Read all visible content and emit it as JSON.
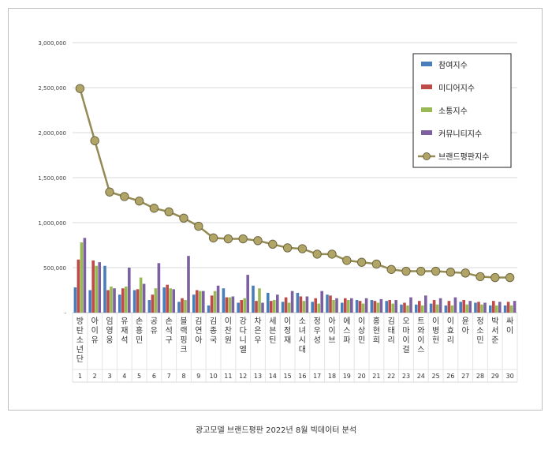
{
  "caption": "광고모델 브랜드평판  2022년 8월 빅데이터 분석",
  "colors": {
    "participation": "#4a7ebb",
    "media": "#be4b48",
    "communication": "#98b954",
    "community": "#7d60a0",
    "brand": "#948a54"
  },
  "chart_data": {
    "type": "bar",
    "categories": [
      "방탄소년단",
      "아이유",
      "임영웅",
      "유재석",
      "손흥민",
      "공유",
      "손석구",
      "블랙핑크",
      "김연아",
      "김종국",
      "이찬원",
      "강다니엘",
      "차은우",
      "세븐틴",
      "이정재",
      "소녀시대",
      "정우성",
      "아이브",
      "에스파",
      "이상민",
      "홍현희",
      "김태리",
      "오마이걸",
      "트와이스",
      "이병헌",
      "이효리",
      "윤아",
      "정소민",
      "박서준",
      "싸이"
    ],
    "ranks": [
      "1",
      "2",
      "3",
      "4",
      "5",
      "6",
      "7",
      "8",
      "9",
      "10",
      "11",
      "12",
      "13",
      "14",
      "15",
      "16",
      "17",
      "18",
      "19",
      "20",
      "21",
      "22",
      "23",
      "24",
      "25",
      "26",
      "27",
      "28",
      "29",
      "30"
    ],
    "ylim": [
      0,
      3000000
    ],
    "yticks": [
      "3,000,000",
      "2,500,000",
      "2,000,000",
      "1,500,000",
      "1,000,000",
      "500,000",
      "-"
    ],
    "ytick_values": [
      3000000,
      2500000,
      2000000,
      1500000,
      1000000,
      500000,
      0
    ],
    "legend_position": "top-right",
    "series": [
      {
        "name": "참여지수",
        "kind": "bar",
        "color_key": "participation",
        "values": [
          280000,
          250000,
          520000,
          200000,
          250000,
          140000,
          280000,
          120000,
          200000,
          80000,
          270000,
          110000,
          300000,
          220000,
          120000,
          220000,
          120000,
          200000,
          110000,
          140000,
          140000,
          130000,
          90000,
          90000,
          100000,
          80000,
          120000,
          110000,
          80000,
          80000
        ]
      },
      {
        "name": "미디어지수",
        "kind": "bar",
        "color_key": "media",
        "values": [
          590000,
          580000,
          250000,
          270000,
          260000,
          200000,
          310000,
          160000,
          250000,
          190000,
          170000,
          140000,
          130000,
          130000,
          170000,
          180000,
          160000,
          190000,
          160000,
          130000,
          130000,
          140000,
          110000,
          130000,
          140000,
          130000,
          140000,
          120000,
          130000,
          120000
        ]
      },
      {
        "name": "소통지수",
        "kind": "bar",
        "color_key": "communication",
        "values": [
          780000,
          520000,
          290000,
          290000,
          390000,
          270000,
          270000,
          140000,
          240000,
          240000,
          170000,
          160000,
          270000,
          140000,
          110000,
          130000,
          100000,
          140000,
          140000,
          100000,
          110000,
          100000,
          80000,
          80000,
          90000,
          80000,
          90000,
          90000,
          80000,
          80000
        ]
      },
      {
        "name": "커뮤니티지수",
        "kind": "bar",
        "color_key": "community",
        "values": [
          830000,
          560000,
          270000,
          500000,
          320000,
          550000,
          260000,
          630000,
          240000,
          300000,
          180000,
          420000,
          110000,
          200000,
          240000,
          180000,
          240000,
          160000,
          160000,
          160000,
          150000,
          140000,
          170000,
          190000,
          160000,
          170000,
          130000,
          110000,
          120000,
          130000
        ]
      },
      {
        "name": "브랜드평판지수",
        "kind": "line",
        "color_key": "brand",
        "values": [
          2490000,
          1910000,
          1340000,
          1290000,
          1240000,
          1160000,
          1120000,
          1050000,
          960000,
          830000,
          820000,
          820000,
          800000,
          760000,
          720000,
          710000,
          650000,
          650000,
          580000,
          560000,
          540000,
          480000,
          460000,
          460000,
          460000,
          450000,
          440000,
          400000,
          390000,
          390000
        ]
      }
    ]
  }
}
